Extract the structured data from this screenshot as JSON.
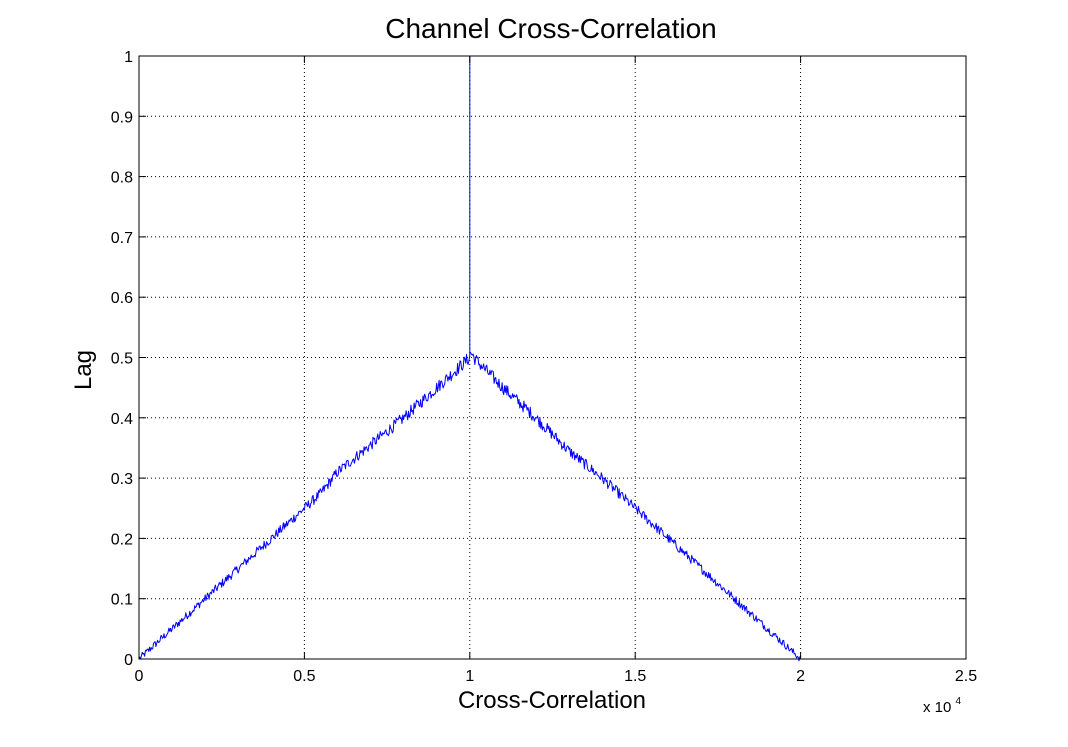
{
  "chart_data": {
    "type": "line",
    "title": "Channel Cross-Correlation",
    "xlabel": "Cross-Correlation",
    "ylabel": "Lag",
    "xlim": [
      0,
      25000
    ],
    "ylim": [
      0,
      1
    ],
    "x_ticks": [
      0,
      5000,
      10000,
      15000,
      20000,
      25000
    ],
    "x_tick_labels": [
      "0",
      "0.5",
      "1",
      "1.5",
      "2",
      "2.5"
    ],
    "x_exponent_label": "x 10",
    "x_exponent_power": "4",
    "y_ticks": [
      0,
      0.1,
      0.2,
      0.3,
      0.4,
      0.5,
      0.6,
      0.7,
      0.8,
      0.9,
      1
    ],
    "y_tick_labels": [
      "0",
      "0.1",
      "0.2",
      "0.3",
      "0.4",
      "0.5",
      "0.6",
      "0.7",
      "0.8",
      "0.9",
      "1"
    ],
    "grid": true,
    "grid_style": "dotted",
    "series": [
      {
        "color": "#0000ff",
        "x": [
          0,
          1000,
          2000,
          2500,
          3000,
          4000,
          5000,
          5500,
          6000,
          7000,
          8000,
          9000,
          9800,
          10000,
          10000,
          10000,
          10200,
          11000,
          12000,
          13000,
          14000,
          15000,
          16000,
          17000,
          18000,
          19000,
          20000
        ],
        "y": [
          0,
          0.05,
          0.1,
          0.125,
          0.15,
          0.2,
          0.25,
          0.275,
          0.31,
          0.355,
          0.4,
          0.45,
          0.49,
          0.5,
          1.0,
          0.51,
          0.495,
          0.45,
          0.4,
          0.345,
          0.3,
          0.25,
          0.2,
          0.15,
          0.1,
          0.05,
          0
        ]
      }
    ]
  }
}
